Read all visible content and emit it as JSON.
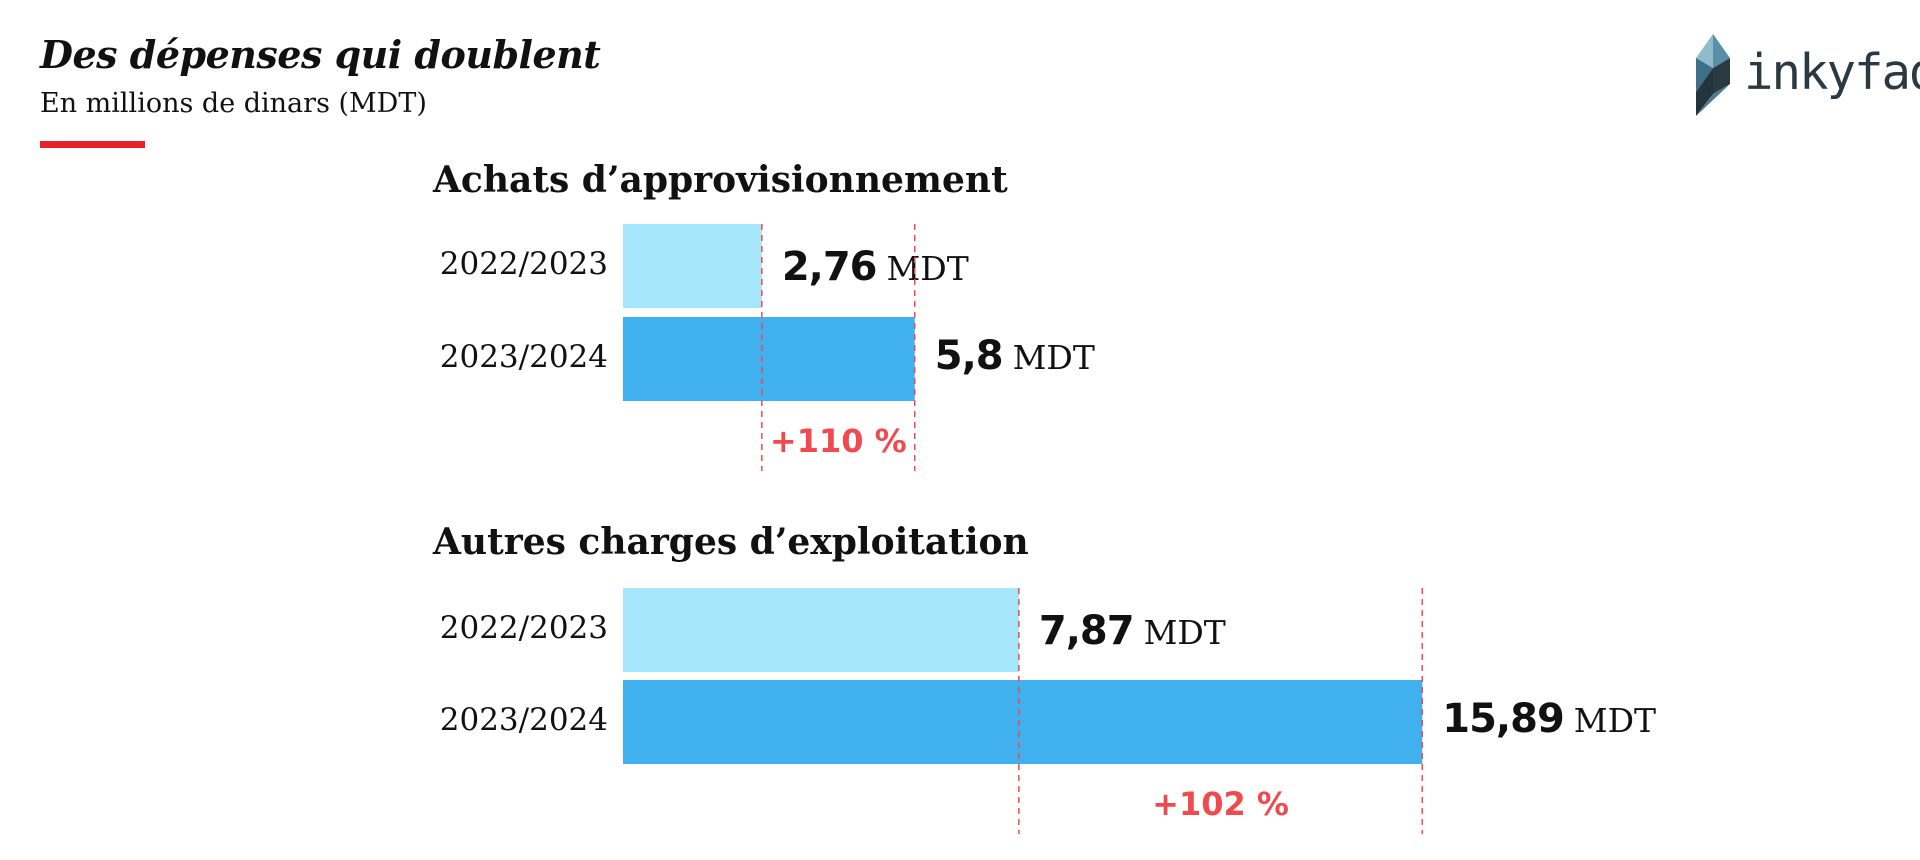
{
  "header": {
    "title": "Des dépenses qui doublent",
    "subtitle": "En millions de dinars (MDT)"
  },
  "logo": {
    "text": "inkyfada"
  },
  "colors": {
    "previous_year": "#a6e6fb",
    "current_year": "#41b0ef",
    "accent": "#f04a4f",
    "header_rule": "#e8202a"
  },
  "chart_data": [
    {
      "type": "bar",
      "orientation": "horizontal",
      "title": "Achats d’approvisionnement",
      "categories": [
        "2022/2023",
        "2023/2024"
      ],
      "values": [
        2.76,
        5.8
      ],
      "value_labels": [
        "2,76",
        "5,8"
      ],
      "unit": "MDT",
      "change_label": "+110 %",
      "xlim": [
        0,
        16
      ]
    },
    {
      "type": "bar",
      "orientation": "horizontal",
      "title": "Autres charges d’exploitation",
      "categories": [
        "2022/2023",
        "2023/2024"
      ],
      "values": [
        7.87,
        15.89
      ],
      "value_labels": [
        "7,87",
        "15,89"
      ],
      "unit": "MDT",
      "change_label": "+102 %",
      "xlim": [
        0,
        16
      ]
    }
  ]
}
